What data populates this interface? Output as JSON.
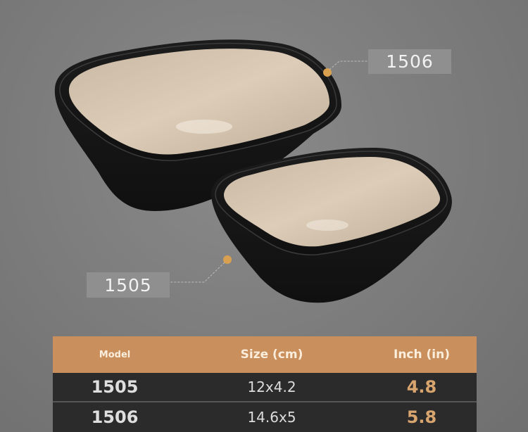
{
  "labels": {
    "large": "1506",
    "small": "1505"
  },
  "colors": {
    "accent": "#c98f5c",
    "dot": "#d9a050",
    "table_dark": "#2b2b2c",
    "inch_value": "#d9a56f"
  },
  "table": {
    "headers": [
      "Model",
      "Size (cm)",
      "Inch (in)"
    ],
    "rows": [
      {
        "model": "1505",
        "size": "12x4.2",
        "inch": "4.8"
      },
      {
        "model": "1506",
        "size": "14.6x5",
        "inch": "5.8"
      }
    ]
  }
}
